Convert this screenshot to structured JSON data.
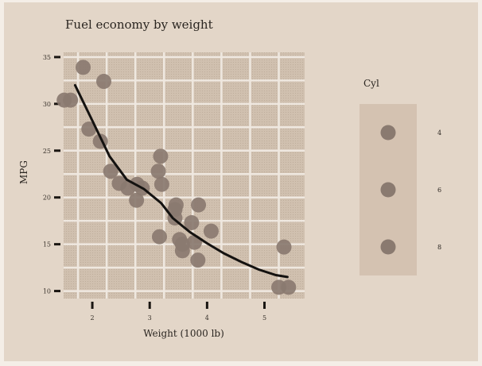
{
  "chart_data": {
    "type": "scatter",
    "title": "Fuel economy by weight",
    "xlabel": "Weight (1000 lb)",
    "ylabel": "MPG",
    "xlim": [
      1.5,
      5.7
    ],
    "ylim": [
      9.2,
      35.5
    ],
    "x_ticks": [
      2,
      3,
      4,
      5
    ],
    "y_ticks": [
      10,
      15,
      20,
      25,
      30,
      35
    ],
    "grid": true,
    "legend_title": "Cyl",
    "legend_position": "right",
    "legend_entries": [
      "4",
      "6",
      "8"
    ],
    "colors": {
      "panel": "#d0c0af",
      "grid": "#efe8e0",
      "point": "#8a7a70",
      "trend": "#141210",
      "legend_box": "#d4c2b1"
    },
    "points": [
      {
        "x": 1.51,
        "y": 30.4
      },
      {
        "x": 1.62,
        "y": 30.4
      },
      {
        "x": 1.84,
        "y": 33.9
      },
      {
        "x": 1.94,
        "y": 27.3
      },
      {
        "x": 2.14,
        "y": 26.0
      },
      {
        "x": 2.2,
        "y": 32.4
      },
      {
        "x": 2.32,
        "y": 22.8
      },
      {
        "x": 2.47,
        "y": 21.5
      },
      {
        "x": 2.62,
        "y": 21.0
      },
      {
        "x": 2.78,
        "y": 21.4
      },
      {
        "x": 2.77,
        "y": 19.7
      },
      {
        "x": 2.87,
        "y": 21.0
      },
      {
        "x": 3.15,
        "y": 22.8
      },
      {
        "x": 3.19,
        "y": 24.4
      },
      {
        "x": 3.21,
        "y": 21.4
      },
      {
        "x": 3.17,
        "y": 15.8
      },
      {
        "x": 3.44,
        "y": 18.7
      },
      {
        "x": 3.44,
        "y": 17.8
      },
      {
        "x": 3.46,
        "y": 19.2
      },
      {
        "x": 3.52,
        "y": 15.5
      },
      {
        "x": 3.57,
        "y": 14.3
      },
      {
        "x": 3.57,
        "y": 15.0
      },
      {
        "x": 3.73,
        "y": 17.3
      },
      {
        "x": 3.78,
        "y": 15.2
      },
      {
        "x": 3.84,
        "y": 13.3
      },
      {
        "x": 3.85,
        "y": 19.2
      },
      {
        "x": 4.07,
        "y": 16.4
      },
      {
        "x": 5.25,
        "y": 10.4
      },
      {
        "x": 5.34,
        "y": 14.7
      },
      {
        "x": 5.42,
        "y": 10.4
      }
    ],
    "trend_line": [
      {
        "x": 1.7,
        "y": 32.0
      },
      {
        "x": 2.0,
        "y": 28.2
      },
      {
        "x": 2.3,
        "y": 24.4
      },
      {
        "x": 2.6,
        "y": 21.9
      },
      {
        "x": 2.9,
        "y": 20.9
      },
      {
        "x": 3.2,
        "y": 19.4
      },
      {
        "x": 3.4,
        "y": 17.8
      },
      {
        "x": 3.7,
        "y": 16.3
      },
      {
        "x": 4.0,
        "y": 15.1
      },
      {
        "x": 4.3,
        "y": 14.0
      },
      {
        "x": 4.6,
        "y": 13.1
      },
      {
        "x": 4.9,
        "y": 12.3
      },
      {
        "x": 5.2,
        "y": 11.7
      },
      {
        "x": 5.4,
        "y": 11.5
      }
    ]
  }
}
